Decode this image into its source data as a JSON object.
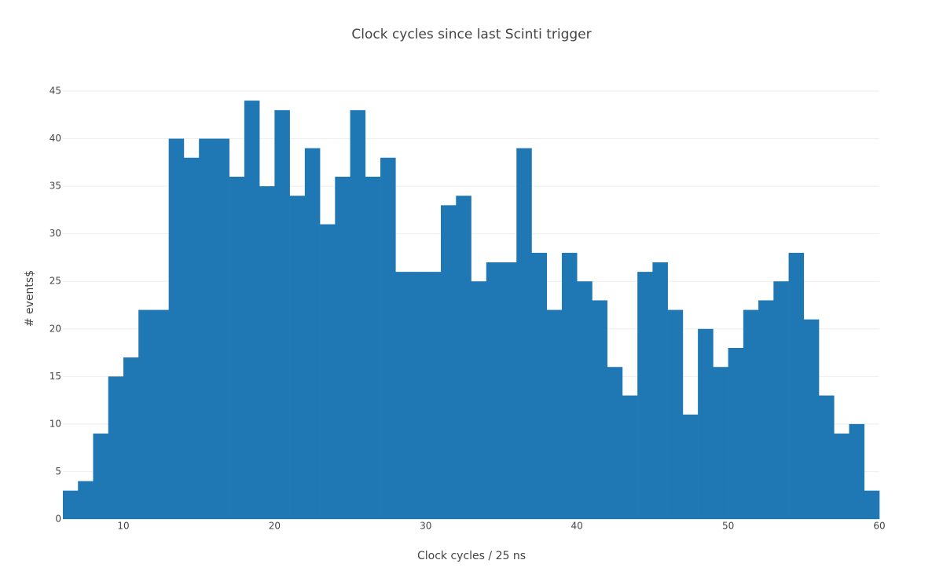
{
  "chart_data": {
    "type": "histogram",
    "title": "Clock cycles since last Scinti trigger",
    "x_label": "Clock cycles / 25 ns",
    "y_label": "# events$",
    "bins": [
      6,
      7,
      8,
      9,
      10,
      11,
      12,
      13,
      14,
      15,
      16,
      17,
      18,
      19,
      20,
      21,
      22,
      23,
      24,
      25,
      26,
      27,
      28,
      29,
      30,
      31,
      32,
      33,
      34,
      35,
      36,
      37,
      38,
      39,
      40,
      41,
      42,
      43,
      44,
      45,
      46,
      47,
      48,
      49,
      50,
      51,
      52,
      53,
      54,
      55,
      56,
      57,
      58,
      59,
      60
    ],
    "values": [
      3,
      4,
      9,
      15,
      17,
      22,
      22,
      40,
      38,
      40,
      40,
      36,
      44,
      35,
      43,
      34,
      39,
      31,
      36,
      43,
      36,
      38,
      26,
      26,
      26,
      33,
      34,
      25,
      27,
      27,
      39,
      28,
      22,
      28,
      25,
      23,
      16,
      13,
      26,
      27,
      22,
      11,
      20,
      16,
      18,
      22,
      23,
      25,
      28,
      21,
      13,
      9,
      10,
      3
    ],
    "color": "#1f77b4",
    "xlim": [
      6,
      60
    ],
    "xticks": [
      10,
      20,
      30,
      40,
      50,
      60
    ],
    "ylim": [
      0,
      45
    ],
    "yticks": [
      0,
      5,
      10,
      15,
      20,
      25,
      30,
      35,
      40,
      45
    ],
    "grid": true
  }
}
